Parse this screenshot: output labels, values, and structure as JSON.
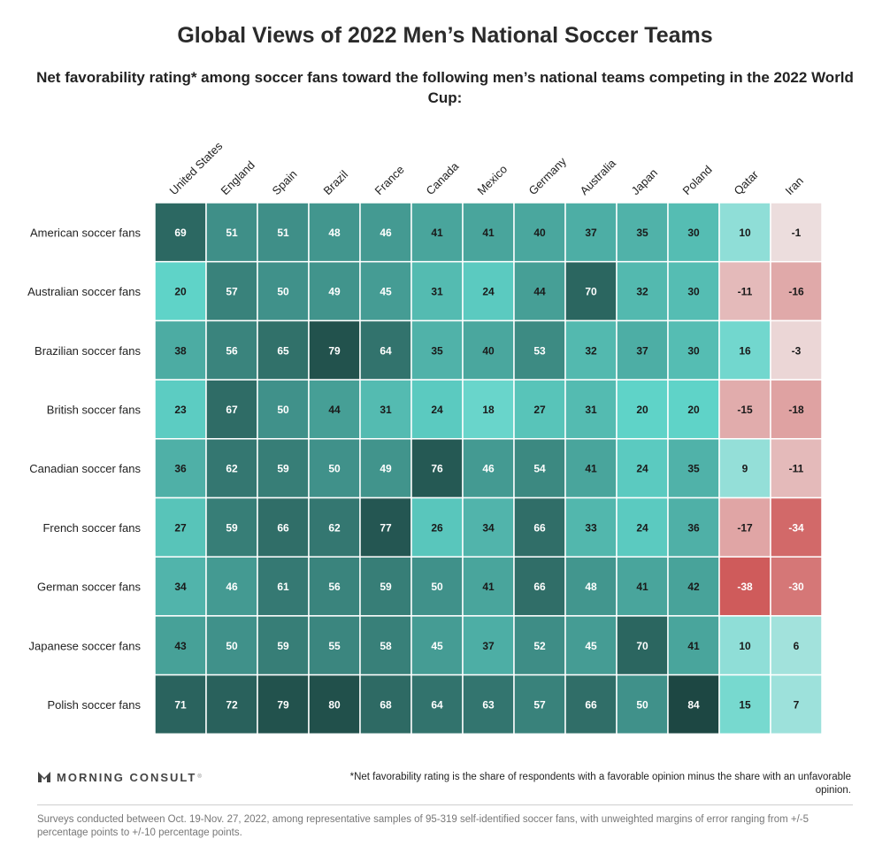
{
  "header": {
    "title": "Global Views of 2022 Men’s National Soccer Teams",
    "subtitle": "Net favorability rating* among soccer fans toward the following men’s national teams competing in the 2022 World Cup:"
  },
  "chart_data": {
    "type": "heatmap",
    "title": "Global Views of 2022 Men’s National Soccer Teams",
    "columns": [
      "United States",
      "England",
      "Spain",
      "Brazil",
      "France",
      "Canada",
      "Mexico",
      "Germany",
      "Australia",
      "Japan",
      "Poland",
      "Qatar",
      "Iran"
    ],
    "rows": [
      "American soccer fans",
      "Australian soccer fans",
      "Brazilian soccer fans",
      "British soccer fans",
      "Canadian soccer fans",
      "French soccer fans",
      "German soccer fans",
      "Japanese soccer fans",
      "Polish soccer fans"
    ],
    "values": [
      [
        69,
        51,
        51,
        48,
        46,
        41,
        41,
        40,
        37,
        35,
        30,
        10,
        -1
      ],
      [
        20,
        57,
        50,
        49,
        45,
        31,
        24,
        44,
        70,
        32,
        30,
        -11,
        -16
      ],
      [
        38,
        56,
        65,
        79,
        64,
        35,
        40,
        53,
        32,
        37,
        30,
        16,
        -3
      ],
      [
        23,
        67,
        50,
        44,
        31,
        24,
        18,
        27,
        31,
        20,
        20,
        -15,
        -18
      ],
      [
        36,
        62,
        59,
        50,
        49,
        76,
        46,
        54,
        41,
        24,
        35,
        9,
        -11
      ],
      [
        27,
        59,
        66,
        62,
        77,
        26,
        34,
        66,
        33,
        24,
        36,
        -17,
        -34
      ],
      [
        34,
        46,
        61,
        56,
        59,
        50,
        41,
        66,
        48,
        41,
        42,
        -38,
        -30
      ],
      [
        43,
        50,
        59,
        55,
        58,
        45,
        37,
        52,
        45,
        70,
        41,
        10,
        6
      ],
      [
        71,
        72,
        79,
        80,
        68,
        64,
        63,
        57,
        66,
        50,
        84,
        15,
        7
      ]
    ],
    "color_scale": {
      "positive_low": "#bfe9e5",
      "positive_mid": "#5fd3c8",
      "positive_high": "#1d4743",
      "negative_low": "#ede1e1",
      "negative_high": "#cf5b5b",
      "text_dark": "#1a1a1a",
      "text_light": "#ffffff"
    }
  },
  "footer": {
    "brand": "MORNING CONSULT",
    "trademark": "®",
    "note": "*Net favorability rating is the share of respondents with a favorable opinion minus the share with an unfavorable opinion.",
    "source": "Surveys conducted between Oct. 19-Nov. 27, 2022, among representative samples of 95-319 self-identified soccer fans, with unweighted margins of error ranging from +/-5 percentage points to +/-10 percentage points."
  }
}
